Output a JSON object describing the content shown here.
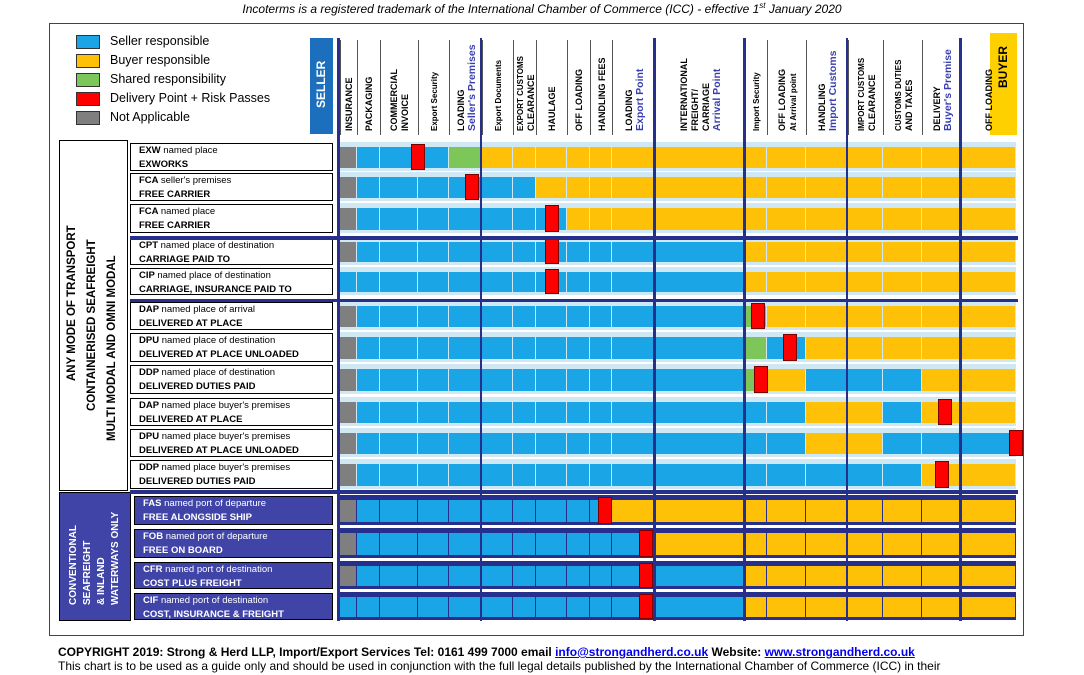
{
  "title": {
    "main": "Incoterms is a registered trademark of the International Chamber of Commerce (ICC) - effective 1",
    "sup": "st",
    "end": " January 2020"
  },
  "legend": [
    {
      "label": "Seller responsible",
      "color": "#1aa5e6"
    },
    {
      "label": "Buyer responsible",
      "color": "#ffc107"
    },
    {
      "label": "Shared responsibility",
      "color": "#7dc65a"
    },
    {
      "label": "Delivery Point + Risk Passes",
      "color": "#ff0000"
    },
    {
      "label": "Not Applicable",
      "color": "#7f7f7f"
    }
  ],
  "colors": {
    "S": "#1aa5e6",
    "B": "#ffc107",
    "G": "#7dc65a",
    "N": "#7f7f7f",
    "R": "#ff0000",
    "accent": "#262f8c"
  },
  "seller_label": "SELLER",
  "buyer_label": "BUYER",
  "columns": [
    {
      "id": "insurance",
      "lines": [
        "INSURANCE"
      ],
      "accent": ""
    },
    {
      "id": "packaging",
      "lines": [
        "PACKAGING"
      ],
      "accent": ""
    },
    {
      "id": "commercial-invoice",
      "lines": [
        "COMMERCIAL",
        "INVOICE"
      ],
      "accent": ""
    },
    {
      "id": "export-security",
      "lines": [
        "Export Security"
      ],
      "accent": ""
    },
    {
      "id": "loading-sellers-premises",
      "lines": [
        "LOADING"
      ],
      "accent": "Seller's Premises"
    },
    {
      "id": "export-documents",
      "lines": [
        "Export Documents"
      ],
      "accent": ""
    },
    {
      "id": "export-customs-clearance",
      "lines": [
        "EXPORT CUSTOMS",
        "CLEARANCE"
      ],
      "accent": ""
    },
    {
      "id": "haulage",
      "lines": [
        "HAULAGE"
      ],
      "accent": ""
    },
    {
      "id": "off-loading-1",
      "lines": [
        "OFF LOADING"
      ],
      "accent": ""
    },
    {
      "id": "handling-fees",
      "lines": [
        "HANDLING FEES"
      ],
      "accent": ""
    },
    {
      "id": "loading-export-point",
      "lines": [
        "LOADING"
      ],
      "accent": "Export Point"
    },
    {
      "id": "international-freight",
      "lines": [
        "INTERNATIONAL",
        "FREIGHT/",
        "CARRIAGE"
      ],
      "accent": "Arrival Point"
    },
    {
      "id": "import-security",
      "lines": [
        "Import Security"
      ],
      "accent": ""
    },
    {
      "id": "off-loading-arrival",
      "lines": [
        "OFF LOADING",
        "At Arrival point"
      ],
      "accent": ""
    },
    {
      "id": "handling-import-customs",
      "lines": [
        "HANDLING"
      ],
      "accent": "Import Customs"
    },
    {
      "id": "import-customs-clearance",
      "lines": [
        "IMPORT CUSTOMS",
        "CLEARANCE"
      ],
      "accent": ""
    },
    {
      "id": "customs-duties",
      "lines": [
        "CUSTOMS DUTIES",
        "AND TAXES"
      ],
      "accent": ""
    },
    {
      "id": "delivery-buyers-premise",
      "lines": [
        "DELIVERY"
      ],
      "accent": "Buyer's Premise"
    },
    {
      "id": "off-loading-final",
      "lines": [
        "OFF LOADING"
      ],
      "accent": ""
    }
  ],
  "groups": {
    "any_mode": [
      "ANY MODE OF TRANSPORT",
      "CONTAINERISED SEAFREIGHT",
      "MULTI MODAL AND OMNI MODAL"
    ],
    "sea": [
      "CONVENTIONAL",
      "SEAFREIGHT",
      "& INLAND",
      "WATERWAYS ONLY"
    ]
  },
  "rows": [
    {
      "code": "EXW",
      "place": "named place",
      "name": "EXWORKS",
      "cells": "NSSSGBBBBBBBBBBBBBB",
      "risk": [
        {
          "col": 3,
          "pos": 0
        }
      ]
    },
    {
      "code": "FCA",
      "place": "seller's premises",
      "name": "FREE CARRIER",
      "cells": "NSSSSSSBBBBBBBBBBBB",
      "risk": [
        {
          "col": 4,
          "pos": 0.7
        }
      ]
    },
    {
      "code": "FCA",
      "place": "named place",
      "name": "FREE CARRIER",
      "cells": "NSSSSSSSBBBBBBBBBBB",
      "risk": [
        {
          "col": 7,
          "pos": 0.5
        }
      ]
    },
    {
      "code": "CPT",
      "place": "named place of destination",
      "name": "CARRIAGE PAID TO",
      "cells": "NSSSSSSSSSSSBBBBBBB",
      "risk": [
        {
          "col": 7,
          "pos": 0.5
        }
      ]
    },
    {
      "code": "CIP",
      "place": "named place of destination",
      "name": "CARRIAGE, INSURANCE PAID TO",
      "cells": "SSSSSSSSSSSSBBBBBBB",
      "risk": [
        {
          "col": 7,
          "pos": 0.5
        }
      ]
    },
    {
      "code": "DAP",
      "place": "named place of arrival",
      "name": "DELIVERED AT PLACE",
      "cells": "NSSSSSSSSSSSGBBBBBB",
      "risk": [
        {
          "col": 12,
          "pos": 0.6
        }
      ]
    },
    {
      "code": "DPU",
      "place": "named place of destination",
      "name": "DELIVERED AT PLACE UNLOADED",
      "cells": "NSSSSSSSSSSSGSBBBBB",
      "risk": [
        {
          "col": 13,
          "pos": 0.6
        }
      ]
    },
    {
      "code": "DDP",
      "place": "named place of destination",
      "name": "DELIVERED DUTIES PAID",
      "cells": "NSSSSSSSSSSSGBSSSBB",
      "risk": [
        {
          "col": 12,
          "pos": 0.75
        }
      ]
    },
    {
      "code": "DAP",
      "place": "named place buyer's premises",
      "name": "DELIVERED AT PLACE",
      "cells": "NSSSSSSSSSSSSSBBSBB",
      "risk": [
        {
          "col": 17,
          "pos": 0.6
        }
      ]
    },
    {
      "code": "DPU",
      "place": "named place buyer's premises",
      "name": "DELIVERED AT PLACE UNLOADED",
      "cells": "NSSSSSSSSSSSSSBBSSS",
      "risk": [
        {
          "col": 18,
          "pos": 1
        }
      ]
    },
    {
      "code": "DDP",
      "place": "named place buyer's premises",
      "name": "DELIVERED DUTIES PAID",
      "cells": "NSSSSSSSSSSSSSSSSBB",
      "risk": [
        {
          "col": 17,
          "pos": 0.5
        }
      ]
    },
    {
      "code": "FAS",
      "place": "named port of departure",
      "name": "FREE ALONGSIDE SHIP",
      "cells": "NSSSSSSSSSBBBBBBBBB",
      "risk": [
        {
          "col": 9,
          "pos": 0.7
        }
      ]
    },
    {
      "code": "FOB",
      "place": "named port of departure",
      "name": "FREE ON BOARD",
      "cells": "NSSSSSSSSSSBBBBBBBB",
      "risk": [
        {
          "col": 10,
          "pos": 0.8
        }
      ]
    },
    {
      "code": "CFR",
      "place": "named port of destination",
      "name": "COST PLUS FREIGHT",
      "cells": "NSSSSSSSSSSSBBBBBBB",
      "risk": [
        {
          "col": 10,
          "pos": 0.8
        }
      ]
    },
    {
      "code": "CIF",
      "place": "named port of destination",
      "name": "COST, INSURANCE & FREIGHT",
      "cells": "SSSSSSSSSSSSBBBBBBB",
      "risk": [
        {
          "col": 10,
          "pos": 0.8
        }
      ]
    }
  ],
  "footer": {
    "copyright": "COPYRIGHT 2019: Strong & Herd LLP, Import/Export Services  Tel: 0161 499 7000   email ",
    "email": "info@strongandherd.co.uk",
    "website_label": " Website: ",
    "website": "www.strongandherd.co.uk",
    "disclaimer": "This chart is to be used as a guide only and should be used in conjunction with the full legal details published by the International Chamber of Commerce (ICC) in their"
  }
}
